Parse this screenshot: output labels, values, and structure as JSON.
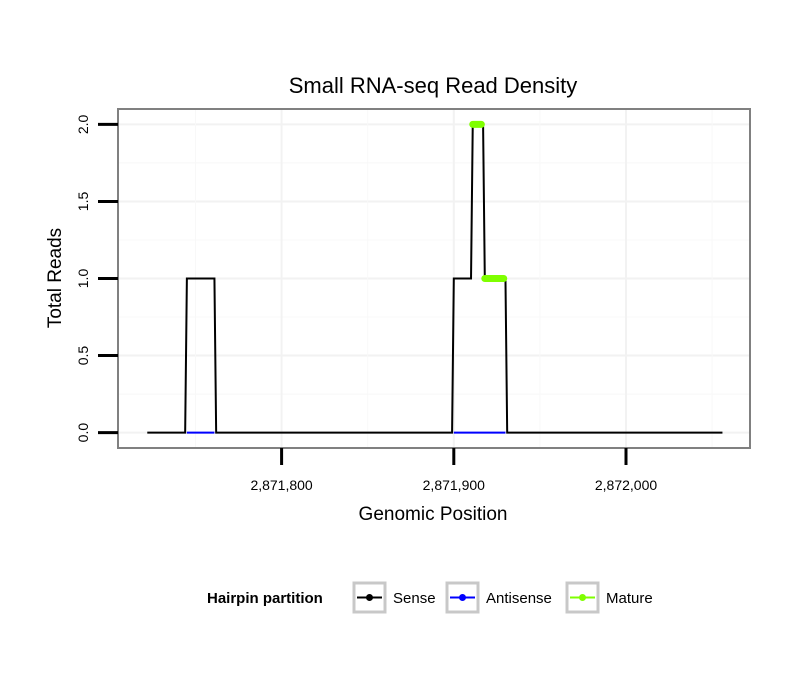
{
  "chart_data": {
    "type": "line",
    "title": "Small RNA-seq Read Density",
    "xlabel": "Genomic Position",
    "ylabel": "Total Reads",
    "xlim": [
      2871705,
      2872072
    ],
    "ylim": [
      -0.1,
      2.1
    ],
    "x_ticks": [
      2871800,
      2871900,
      2872000
    ],
    "x_tick_labels": [
      "2,871,800",
      "2,871,900",
      "2,872,000"
    ],
    "y_ticks": [
      0,
      0.5,
      1,
      1.5,
      2
    ],
    "y_tick_labels": [
      "0.0",
      "0.5",
      "1.0",
      "1.5",
      "2.0"
    ],
    "grid": true,
    "legend": {
      "title": "Hairpin partition",
      "position": "bottom",
      "entries": [
        {
          "label": "Sense",
          "color": "#000000"
        },
        {
          "label": "Antisense",
          "color": "#0000ff"
        },
        {
          "label": "Mature",
          "color": "#7fff00"
        }
      ]
    },
    "series": [
      {
        "name": "Sense",
        "color": "#000000",
        "points": [
          [
            2871722,
            0
          ],
          [
            2871744,
            0
          ],
          [
            2871745,
            1
          ],
          [
            2871761,
            1
          ],
          [
            2871762,
            0
          ],
          [
            2871899,
            0
          ],
          [
            2871900,
            1
          ],
          [
            2871910,
            1
          ],
          [
            2871911,
            2
          ],
          [
            2871917,
            2
          ],
          [
            2871918,
            1
          ],
          [
            2871930,
            1
          ],
          [
            2871931,
            0
          ],
          [
            2872056,
            0
          ]
        ]
      },
      {
        "name": "Antisense",
        "color": "#0000ff",
        "segments": [
          [
            [
              2871745,
              0
            ],
            [
              2871761,
              0
            ]
          ],
          [
            [
              2871900,
              0
            ],
            [
              2871930,
              0
            ]
          ]
        ]
      },
      {
        "name": "Mature",
        "color": "#7fff00",
        "segments": [
          [
            [
              2871911,
              2
            ],
            [
              2871916,
              2
            ]
          ],
          [
            [
              2871918,
              1
            ],
            [
              2871929,
              1
            ]
          ]
        ]
      }
    ]
  }
}
